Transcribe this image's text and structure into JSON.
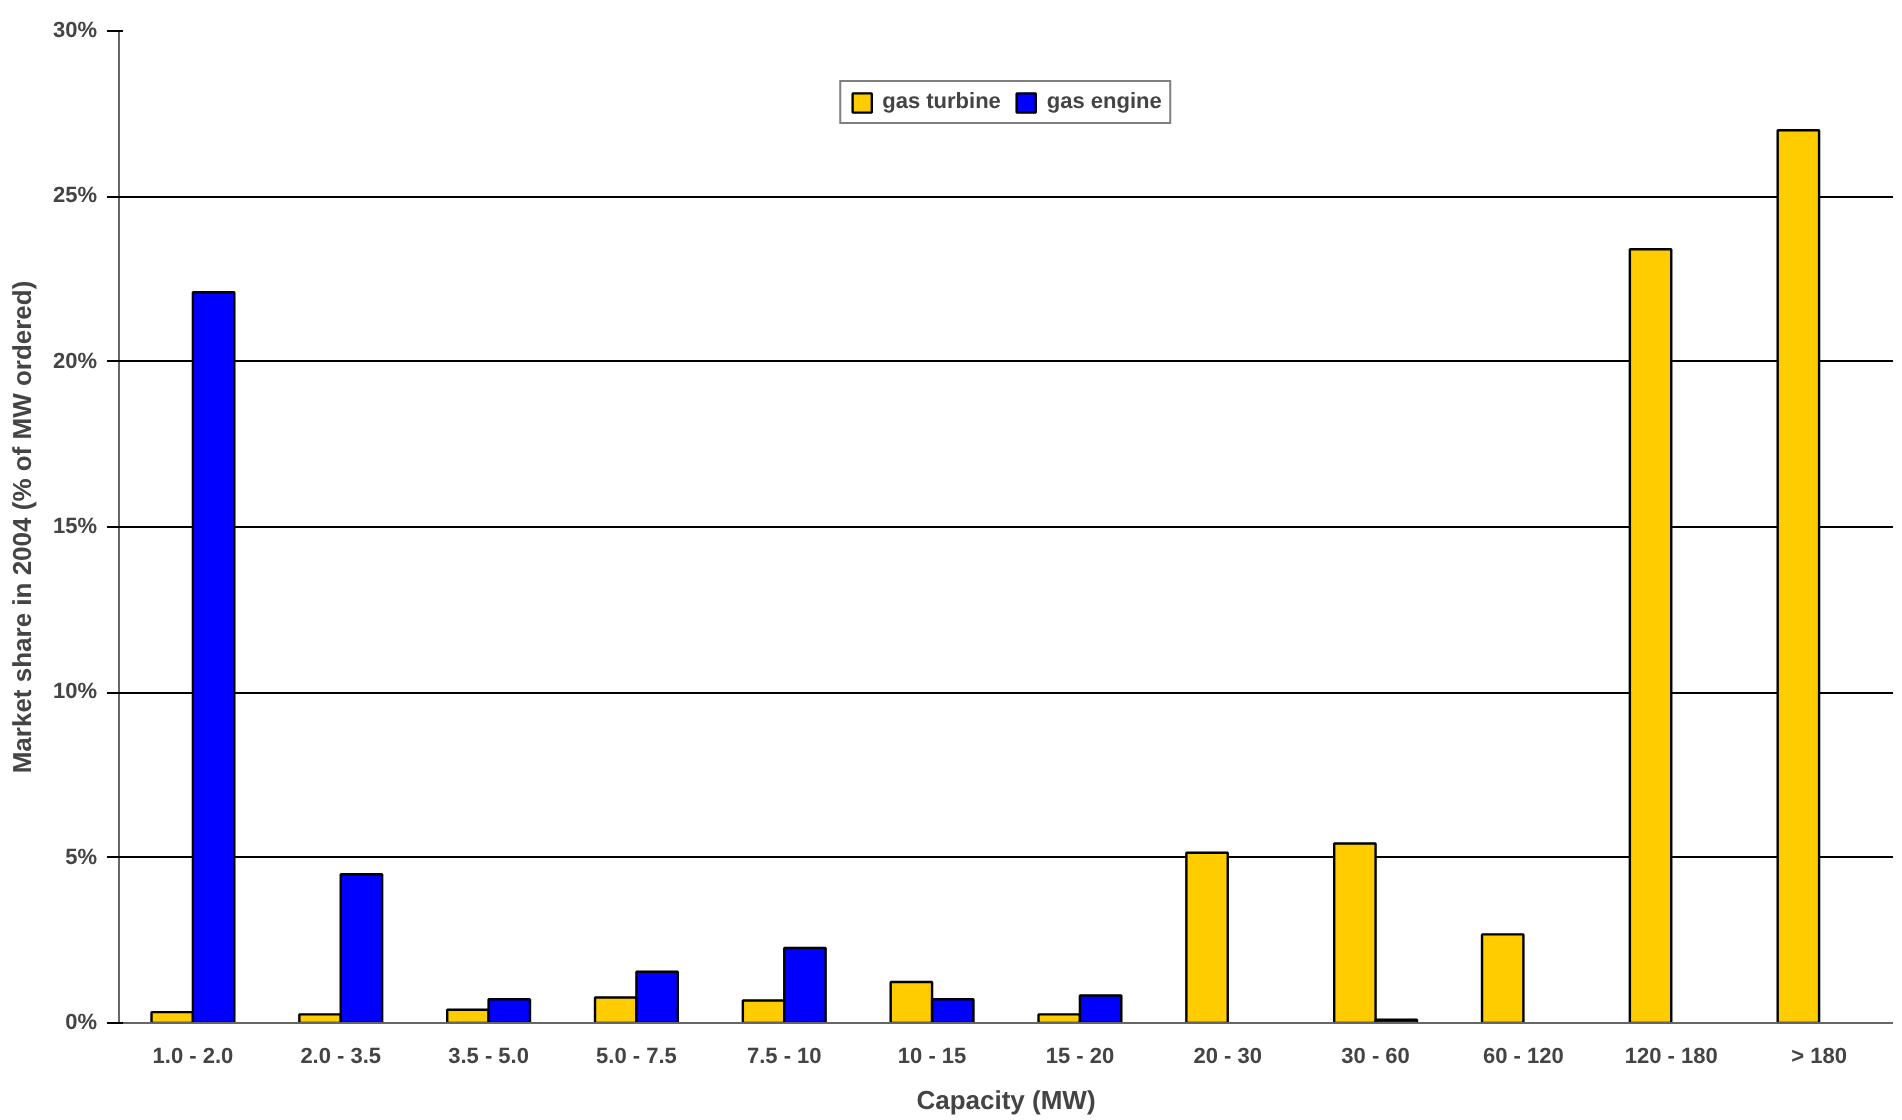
{
  "chart_data": {
    "type": "bar",
    "xlabel": "Capacity (MW)",
    "ylabel": "Market share in 2004 (% of MW ordered)",
    "categories": [
      "1.0 - 2.0",
      "2.0 - 3.5",
      "3.5 - 5.0",
      "5.0 - 7.5",
      "7.5 - 10",
      "10 - 15",
      "15 - 20",
      "20 - 30",
      "30 - 60",
      "60 - 120",
      "120 - 180",
      "> 180"
    ],
    "series": [
      {
        "name": "gas turbine",
        "color": "#ffcc00",
        "values": [
          0.33,
          0.26,
          0.4,
          0.77,
          0.68,
          1.24,
          0.26,
          5.15,
          5.43,
          2.68,
          23.4,
          27.0
        ]
      },
      {
        "name": "gas engine",
        "color": "#0000ff",
        "values": [
          22.1,
          4.5,
          0.72,
          1.55,
          2.27,
          0.72,
          0.83,
          null,
          0.1,
          null,
          null,
          null
        ]
      }
    ],
    "ylim": [
      0,
      30
    ],
    "yticks": [
      {
        "value": 0,
        "label": "0%"
      },
      {
        "value": 5,
        "label": "5%"
      },
      {
        "value": 10,
        "label": "10%"
      },
      {
        "value": 15,
        "label": "15%"
      },
      {
        "value": 20,
        "label": "20%"
      },
      {
        "value": 25,
        "label": "25%"
      },
      {
        "value": 30,
        "label": "30%"
      }
    ],
    "grid": "y",
    "legend": "top"
  }
}
